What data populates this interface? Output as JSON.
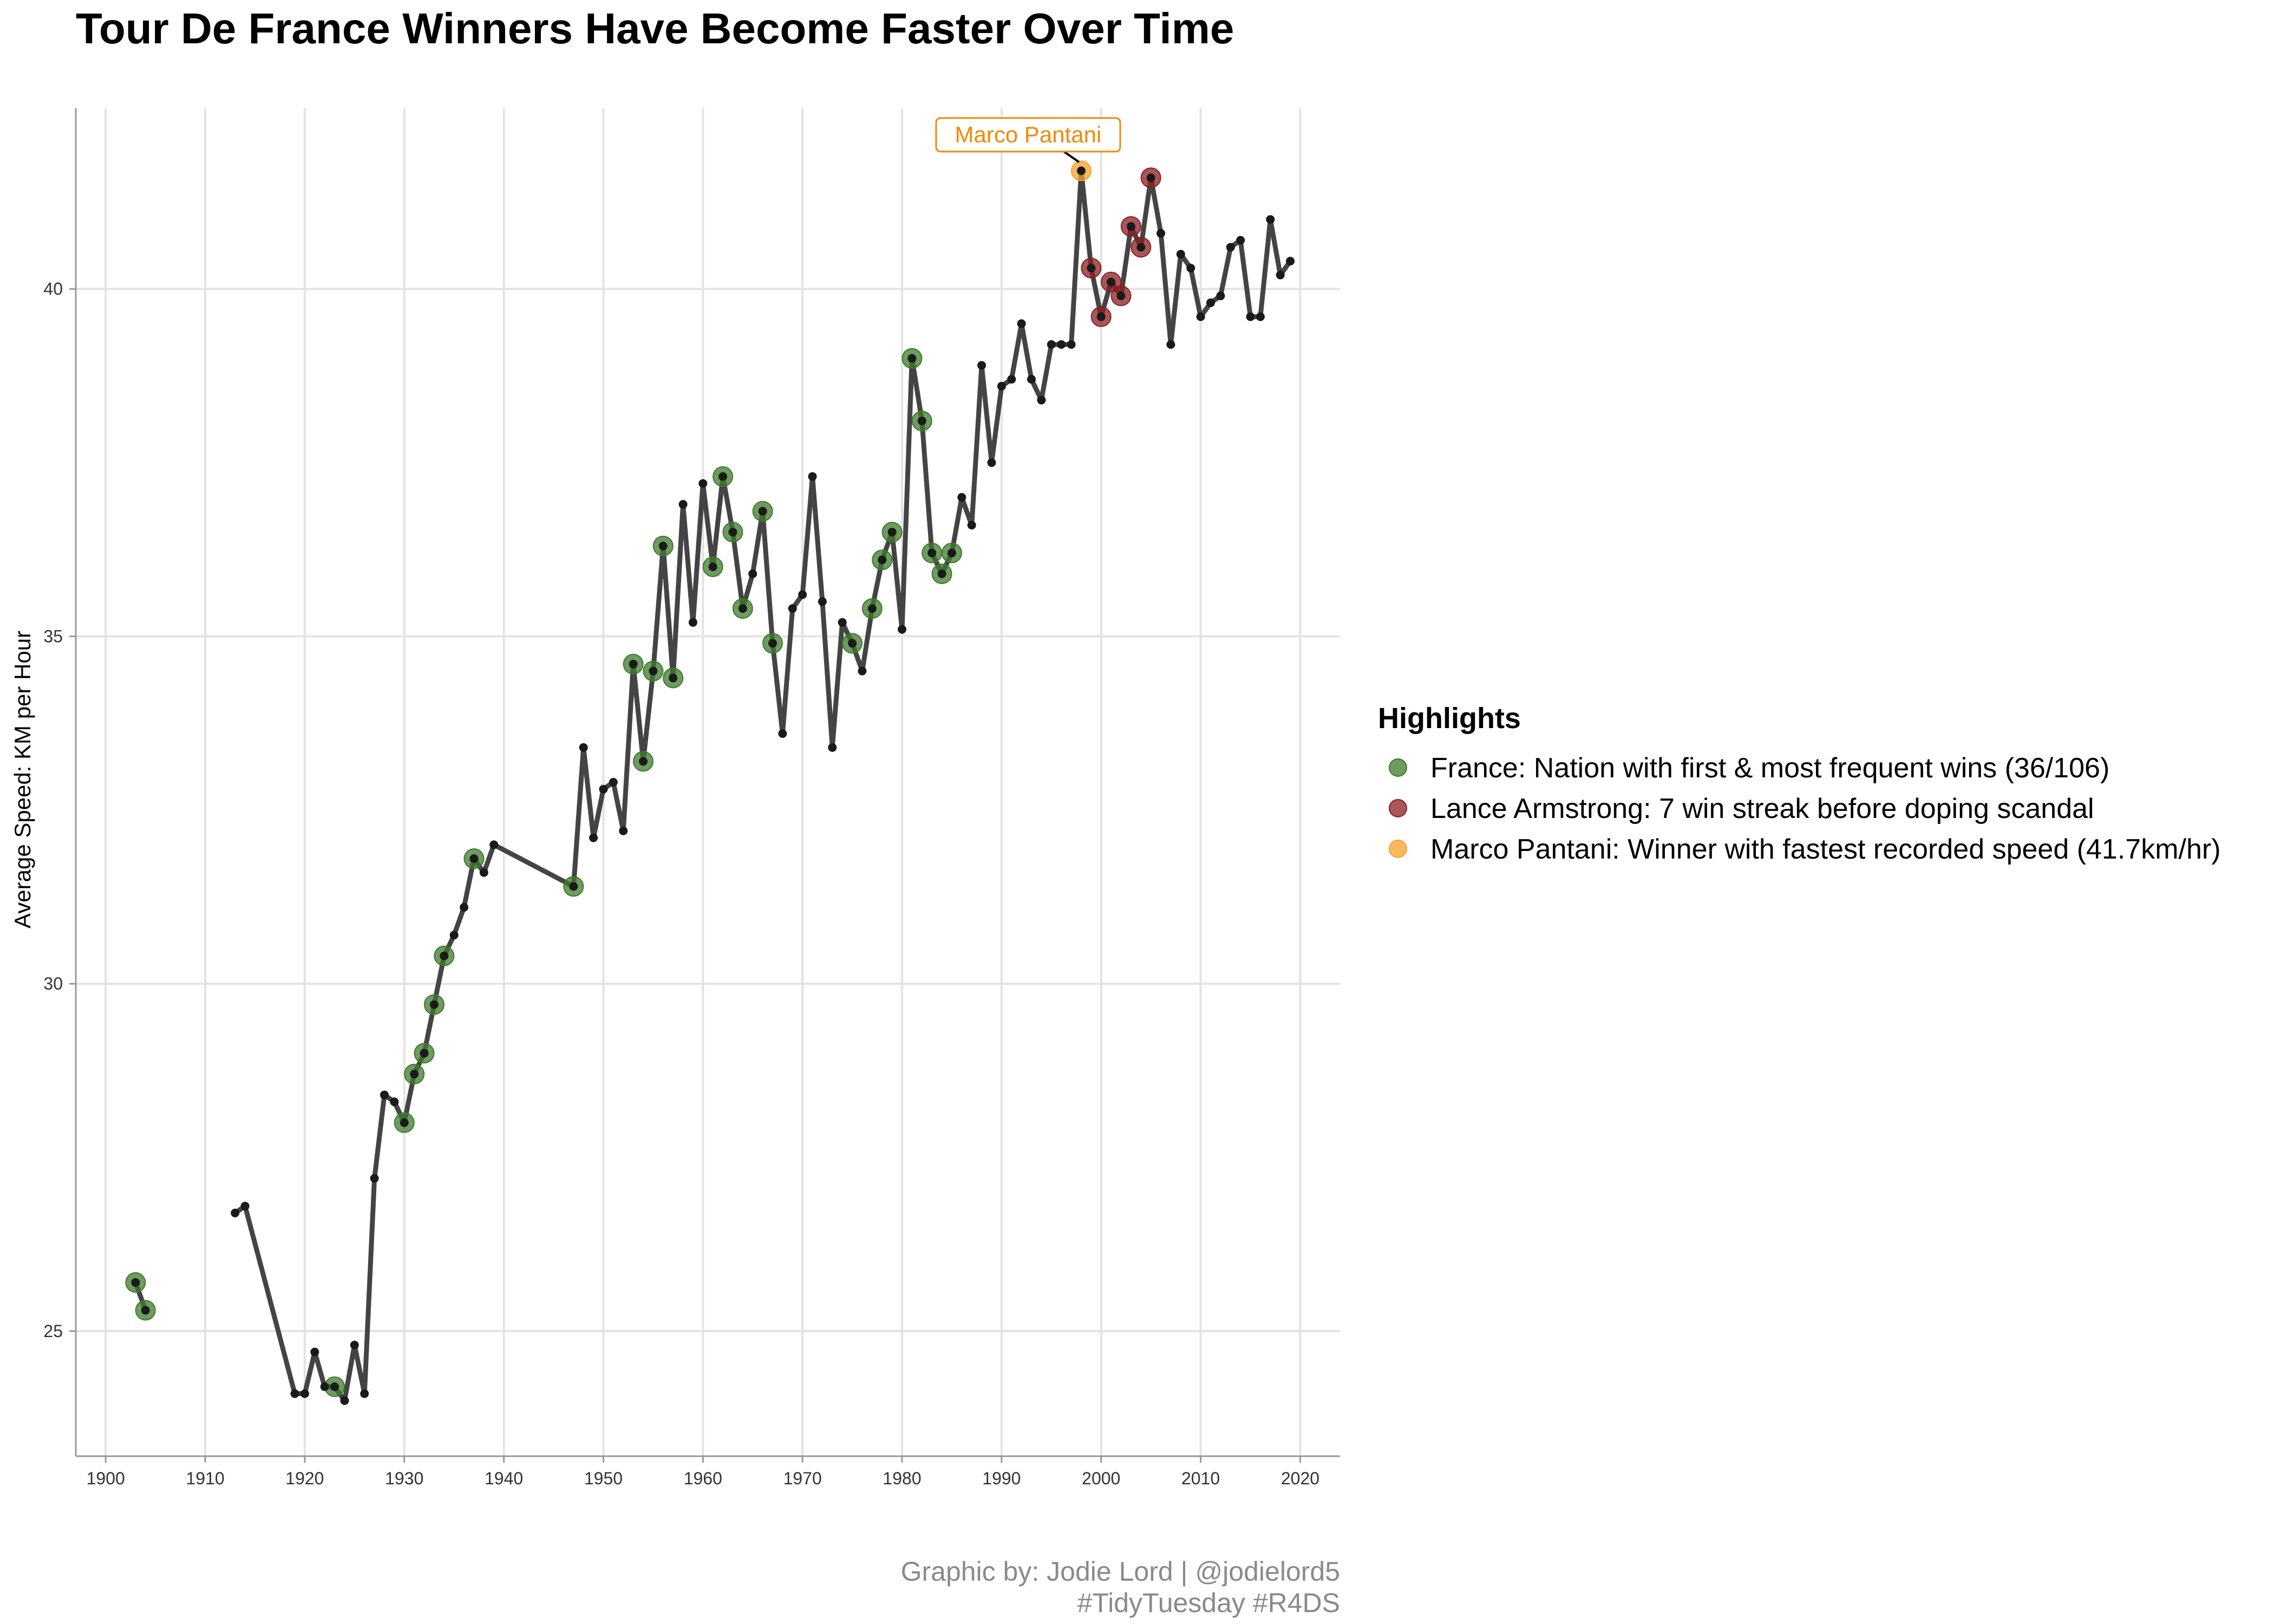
{
  "chart_data": {
    "type": "line",
    "title": "Tour De France Winners Have Become Faster Over Time",
    "xlabel": "",
    "ylabel": "Average Speed: KM per Hour",
    "xlim": [
      1897,
      2024
    ],
    "ylim": [
      23.2,
      42.6
    ],
    "x_ticks": [
      1900,
      1910,
      1920,
      1930,
      1940,
      1950,
      1960,
      1970,
      1980,
      1990,
      2000,
      2010,
      2020
    ],
    "y_ticks": [
      25,
      30,
      35,
      40
    ],
    "grid": true,
    "legend_position": "right",
    "line_color": "#444444",
    "series": [
      {
        "segments": [
          [
            [
              1903,
              25.7
            ],
            [
              1904,
              25.3
            ]
          ],
          [
            [
              1913,
              26.7
            ],
            [
              1914,
              26.8
            ],
            [
              1919,
              24.1
            ],
            [
              1920,
              24.1
            ],
            [
              1921,
              24.7
            ],
            [
              1922,
              24.2
            ],
            [
              1923,
              24.2
            ],
            [
              1924,
              24.0
            ],
            [
              1925,
              24.8
            ],
            [
              1926,
              24.1
            ],
            [
              1927,
              27.2
            ],
            [
              1928,
              28.4
            ],
            [
              1929,
              28.3
            ],
            [
              1930,
              28.0
            ],
            [
              1931,
              28.7
            ],
            [
              1932,
              29.0
            ],
            [
              1933,
              29.7
            ],
            [
              1934,
              30.4
            ],
            [
              1935,
              30.7
            ],
            [
              1936,
              31.1
            ],
            [
              1937,
              31.8
            ],
            [
              1938,
              31.6
            ],
            [
              1939,
              32.0
            ],
            [
              1947,
              31.4
            ],
            [
              1948,
              33.4
            ],
            [
              1949,
              32.1
            ],
            [
              1950,
              32.8
            ],
            [
              1951,
              32.9
            ],
            [
              1952,
              32.2
            ],
            [
              1953,
              34.6
            ],
            [
              1954,
              33.2
            ],
            [
              1955,
              34.5
            ],
            [
              1956,
              36.3
            ],
            [
              1957,
              34.4
            ],
            [
              1958,
              36.9
            ],
            [
              1959,
              35.2
            ],
            [
              1960,
              37.2
            ],
            [
              1961,
              36.0
            ],
            [
              1962,
              37.3
            ],
            [
              1963,
              36.5
            ],
            [
              1964,
              35.4
            ],
            [
              1965,
              35.9
            ],
            [
              1966,
              36.8
            ],
            [
              1967,
              34.9
            ],
            [
              1968,
              33.6
            ],
            [
              1969,
              35.4
            ],
            [
              1970,
              35.6
            ],
            [
              1971,
              37.3
            ],
            [
              1972,
              35.5
            ],
            [
              1973,
              33.4
            ],
            [
              1974,
              35.2
            ],
            [
              1975,
              34.9
            ],
            [
              1976,
              34.5
            ],
            [
              1977,
              35.4
            ],
            [
              1978,
              36.1
            ],
            [
              1979,
              36.5
            ],
            [
              1980,
              35.1
            ],
            [
              1981,
              39.0
            ],
            [
              1982,
              38.1
            ],
            [
              1983,
              36.2
            ],
            [
              1984,
              35.9
            ],
            [
              1985,
              36.2
            ],
            [
              1986,
              37.0
            ],
            [
              1987,
              36.6
            ],
            [
              1988,
              38.9
            ],
            [
              1989,
              37.5
            ],
            [
              1990,
              38.6
            ],
            [
              1991,
              38.7
            ],
            [
              1992,
              39.5
            ],
            [
              1993,
              38.7
            ],
            [
              1994,
              38.4
            ],
            [
              1995,
              39.2
            ],
            [
              1996,
              39.2
            ],
            [
              1997,
              39.2
            ],
            [
              1998,
              41.7
            ],
            [
              1999,
              40.3
            ],
            [
              2000,
              39.6
            ],
            [
              2001,
              40.1
            ],
            [
              2002,
              39.9
            ],
            [
              2003,
              40.9
            ],
            [
              2004,
              40.6
            ],
            [
              2005,
              41.6
            ],
            [
              2006,
              40.8
            ],
            [
              2007,
              39.2
            ],
            [
              2008,
              40.5
            ],
            [
              2009,
              40.3
            ],
            [
              2010,
              39.6
            ],
            [
              2011,
              39.8
            ],
            [
              2012,
              39.9
            ],
            [
              2013,
              40.6
            ],
            [
              2014,
              40.7
            ],
            [
              2015,
              39.6
            ],
            [
              2016,
              39.6
            ],
            [
              2017,
              41.0
            ],
            [
              2018,
              40.2
            ],
            [
              2019,
              40.4
            ]
          ]
        ]
      }
    ],
    "highlights": [
      {
        "label": "France: Nation with first & most frequent wins (36/106)",
        "color": "#3d7a2a",
        "years": [
          1903,
          1904,
          1923,
          1930,
          1931,
          1932,
          1933,
          1934,
          1937,
          1947,
          1953,
          1954,
          1955,
          1956,
          1957,
          1961,
          1962,
          1963,
          1964,
          1966,
          1967,
          1975,
          1977,
          1978,
          1979,
          1981,
          1982,
          1983,
          1984,
          1985
        ]
      },
      {
        "label": "Lance Armstrong: 7 win streak before doping scandal",
        "color": "#8c1d22",
        "years": [
          1999,
          2000,
          2001,
          2002,
          2003,
          2004,
          2005
        ]
      },
      {
        "label": "Marco Pantani: Winner with fastest recorded speed (41.7km/hr)",
        "color": "#f7a22b",
        "years": [
          1998
        ]
      }
    ],
    "annotation": {
      "text": "Marco Pantani",
      "x": 1998,
      "y": 41.7,
      "color": "#ef8a00"
    }
  },
  "legend": {
    "title": "Highlights"
  },
  "caption": {
    "line1": "Graphic by: Jodie Lord | @jodielord5",
    "line2": "#TidyTuesday #R4DS"
  }
}
